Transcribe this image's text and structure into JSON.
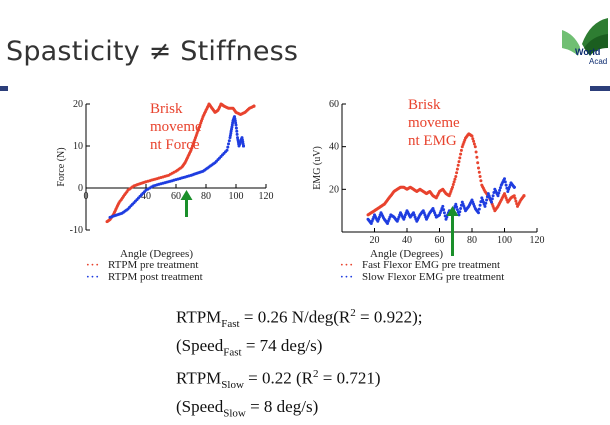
{
  "slide": {
    "title": "Spasticity ≠ Stiffness",
    "logo": {
      "line1": "World",
      "line2": "Acad"
    },
    "brand_color": "#2c3e7a"
  },
  "chart_data": [
    {
      "type": "scatter",
      "title": "",
      "xlabel": "Angle (Degrees)",
      "ylabel": "Force (N)",
      "xlim": [
        0,
        120
      ],
      "ylim": [
        -10,
        20
      ],
      "xticks": [
        "0",
        "40",
        "60",
        "80",
        "100",
        "120"
      ],
      "yticks": [
        "-10",
        "0",
        "10",
        "20"
      ],
      "annotation": "Brisk moveme nt Force",
      "arrow_x": 67,
      "series": [
        {
          "name": "RTPM pre treatment",
          "color": "#e8432e",
          "x": [
            14,
            16,
            18,
            20,
            22,
            25,
            28,
            32,
            36,
            40,
            45,
            50,
            55,
            60,
            64,
            66,
            68,
            70,
            72,
            74,
            76,
            78,
            80,
            82,
            84,
            86,
            88,
            90,
            92,
            95,
            98,
            100,
            103,
            106,
            109,
            112
          ],
          "y": [
            -8,
            -7.5,
            -6.5,
            -5,
            -3.5,
            -2,
            -0.5,
            0.5,
            1,
            1.5,
            2,
            2.5,
            3,
            4,
            5,
            6,
            7.5,
            9,
            11,
            13,
            15,
            17,
            18.5,
            20,
            19,
            18,
            18.5,
            20,
            19.5,
            19,
            19,
            18,
            17.5,
            18,
            19,
            19.5
          ]
        },
        {
          "name": "RTPM post treatment",
          "color": "#1f3de0",
          "x": [
            16,
            20,
            24,
            28,
            32,
            36,
            40,
            45,
            50,
            55,
            60,
            65,
            70,
            74,
            78,
            82,
            86,
            90,
            94,
            96,
            97,
            98,
            99,
            100,
            101,
            102,
            103,
            104,
            105
          ],
          "y": [
            -7,
            -6.5,
            -6,
            -5,
            -3.5,
            -2,
            -0.5,
            0.5,
            1,
            1.5,
            2,
            2.5,
            3,
            3.5,
            4,
            5,
            6,
            7.5,
            9,
            12,
            14,
            16,
            17,
            15,
            12,
            10,
            11,
            12,
            10
          ]
        }
      ]
    },
    {
      "type": "scatter",
      "title": "",
      "xlabel": "Angle (Degrees)",
      "ylabel": "EMG (uV)",
      "xlim": [
        0,
        120
      ],
      "ylim": [
        0,
        60
      ],
      "xticks": [
        "20",
        "40",
        "60",
        "80",
        "100",
        "120"
      ],
      "yticks": [
        "20",
        "40",
        "60"
      ],
      "annotation": "Brisk moveme nt EMG",
      "arrow_x": 68,
      "series": [
        {
          "name": "Fast Flexor EMG pre treatment",
          "color": "#e8432e",
          "x": [
            16,
            18,
            20,
            22,
            24,
            26,
            28,
            30,
            32,
            34,
            36,
            38,
            40,
            42,
            44,
            46,
            48,
            50,
            52,
            54,
            56,
            58,
            60,
            62,
            64,
            66,
            68,
            70,
            72,
            74,
            76,
            78,
            80,
            82,
            84,
            86,
            88,
            90,
            92,
            94,
            96,
            98,
            100,
            102,
            104,
            106,
            108,
            110,
            112
          ],
          "y": [
            8,
            9,
            10,
            11,
            12,
            13,
            15,
            17,
            19,
            20,
            21,
            21,
            20,
            21,
            20,
            19,
            20,
            19,
            18,
            19,
            17,
            16,
            19,
            20,
            18,
            17,
            21,
            26,
            33,
            40,
            44,
            46,
            45,
            40,
            30,
            22,
            19,
            17,
            14,
            10,
            12,
            15,
            18,
            14,
            16,
            17,
            12,
            15,
            17
          ]
        },
        {
          "name": "Slow Flexor EMG pre treatment",
          "color": "#1f3de0",
          "x": [
            16,
            18,
            20,
            22,
            24,
            26,
            28,
            30,
            32,
            34,
            36,
            38,
            40,
            42,
            44,
            46,
            48,
            50,
            52,
            54,
            56,
            58,
            60,
            62,
            64,
            66,
            68,
            70,
            72,
            74,
            76,
            78,
            80,
            82,
            84,
            86,
            88,
            90,
            92,
            94,
            96,
            98,
            100,
            102,
            104,
            106
          ],
          "y": [
            6,
            4,
            8,
            5,
            9,
            6,
            4,
            8,
            7,
            5,
            9,
            6,
            10,
            7,
            9,
            5,
            8,
            10,
            6,
            9,
            11,
            7,
            8,
            12,
            6,
            10,
            9,
            13,
            8,
            14,
            10,
            12,
            15,
            11,
            9,
            16,
            12,
            18,
            14,
            20,
            17,
            22,
            25,
            19,
            23,
            21
          ]
        }
      ]
    }
  ],
  "captions": {
    "left_xlabel": "Angle (Degrees)",
    "right_xlabel": "Angle (Degrees)",
    "left_ylabel": "Force (N)",
    "right_ylabel": "EMG (uV)"
  },
  "legend_left": [
    {
      "label": "RTPM pre treatment",
      "color": "#e8432e"
    },
    {
      "label": "RTPM post treatment",
      "color": "#1f3de0"
    }
  ],
  "legend_right": [
    {
      "label": "Fast Flexor EMG pre treatment",
      "color": "#e8432e"
    },
    {
      "label": "Slow Flexor EMG pre treatment",
      "color": "#1f3de0"
    }
  ],
  "formulas": {
    "line1_main": "RTPM",
    "line1_sub": "Fast",
    "line1_rest": " = 0.26 N/deg(R",
    "line1_sup": "2",
    "line1_end": " = 0.922);",
    "line2_open": "(Speed",
    "line2_sub": "Fast",
    "line2_end": " = 74 deg/s)",
    "line3_main": "RTPM",
    "line3_sub": "Slow",
    "line3_rest": " = 0.22 (R",
    "line3_sup": "2",
    "line3_end": " = 0.721)",
    "line4_open": "(Speed",
    "line4_sub": "Slow",
    "line4_end": " = 8 deg/s)"
  }
}
